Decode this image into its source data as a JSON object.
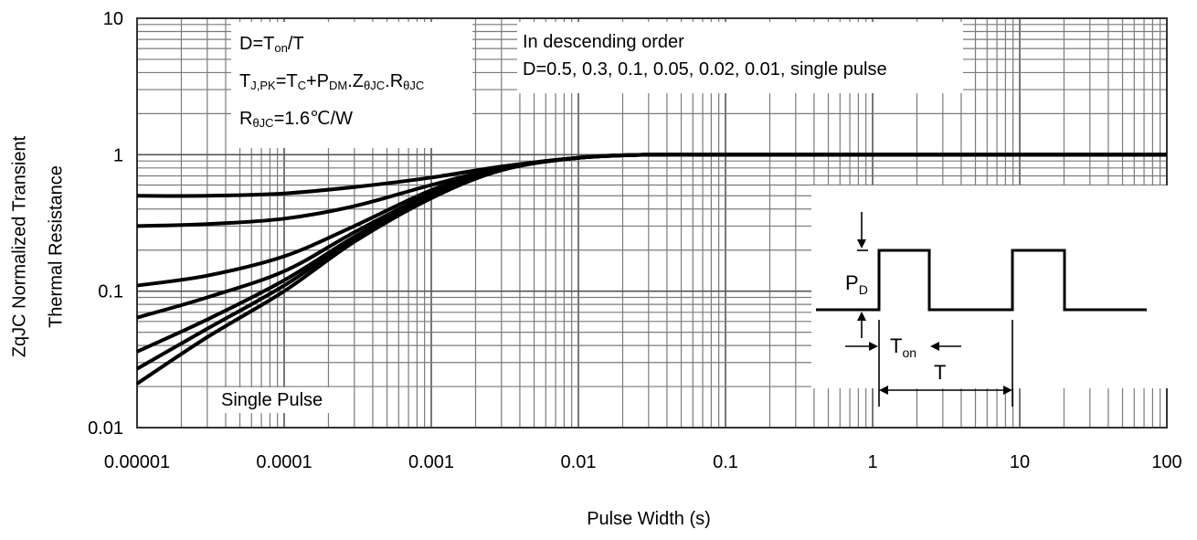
{
  "chart_data": {
    "type": "line",
    "x_scale": "log",
    "y_scale": "log",
    "xlim": [
      1e-05,
      100
    ],
    "ylim": [
      0.01,
      10
    ],
    "x_ticks": [
      "0.00001",
      "0.0001",
      "0.001",
      "0.01",
      "0.1",
      "1",
      "10",
      "100"
    ],
    "y_ticks": [
      "0.01",
      "0.1",
      "1",
      "10"
    ],
    "xlabel": "Pulse Width (s)",
    "ylabel_line1": "ZqJC Normalized Transient",
    "ylabel_line2": "Thermal Resistance",
    "grid": true,
    "series": [
      {
        "name": "D=0.5",
        "x": [
          1e-05,
          3e-05,
          0.0001,
          0.0003,
          0.001,
          0.003,
          0.01,
          0.03,
          0.1,
          1,
          10,
          100
        ],
        "y": [
          0.5,
          0.5,
          0.52,
          0.58,
          0.68,
          0.82,
          0.95,
          1.0,
          1.0,
          1.0,
          1.0,
          1.0
        ]
      },
      {
        "name": "D=0.3",
        "x": [
          1e-05,
          3e-05,
          0.0001,
          0.0003,
          0.001,
          0.003,
          0.01,
          0.03,
          0.1,
          1,
          10,
          100
        ],
        "y": [
          0.3,
          0.31,
          0.34,
          0.42,
          0.6,
          0.8,
          0.95,
          1.0,
          1.0,
          1.0,
          1.0,
          1.0
        ]
      },
      {
        "name": "D=0.1",
        "x": [
          1e-05,
          3e-05,
          0.0001,
          0.0003,
          0.001,
          0.003,
          0.01,
          0.03,
          0.1,
          1,
          10,
          100
        ],
        "y": [
          0.11,
          0.13,
          0.18,
          0.3,
          0.55,
          0.8,
          0.95,
          1.0,
          1.0,
          1.0,
          1.0,
          1.0
        ]
      },
      {
        "name": "D=0.05",
        "x": [
          1e-05,
          3e-05,
          0.0001,
          0.0003,
          0.001,
          0.003,
          0.01,
          0.03,
          0.1,
          1,
          10,
          100
        ],
        "y": [
          0.064,
          0.09,
          0.14,
          0.27,
          0.52,
          0.79,
          0.95,
          1.0,
          1.0,
          1.0,
          1.0,
          1.0
        ]
      },
      {
        "name": "D=0.02",
        "x": [
          1e-05,
          3e-05,
          0.0001,
          0.0003,
          0.001,
          0.003,
          0.01,
          0.03,
          0.1,
          1,
          10,
          100
        ],
        "y": [
          0.036,
          0.062,
          0.12,
          0.25,
          0.5,
          0.78,
          0.95,
          1.0,
          1.0,
          1.0,
          1.0,
          1.0
        ]
      },
      {
        "name": "D=0.01",
        "x": [
          1e-05,
          3e-05,
          0.0001,
          0.0003,
          0.001,
          0.003,
          0.01,
          0.03,
          0.1,
          1,
          10,
          100
        ],
        "y": [
          0.027,
          0.053,
          0.11,
          0.24,
          0.49,
          0.78,
          0.95,
          1.0,
          1.0,
          1.0,
          1.0,
          1.0
        ]
      },
      {
        "name": "single pulse",
        "x": [
          1e-05,
          3e-05,
          0.0001,
          0.0003,
          0.001,
          0.003,
          0.01,
          0.03,
          0.1,
          1,
          10,
          100
        ],
        "y": [
          0.021,
          0.046,
          0.1,
          0.23,
          0.48,
          0.77,
          0.95,
          1.0,
          1.0,
          1.0,
          1.0,
          1.0
        ]
      }
    ],
    "annotations": {
      "box1": {
        "line1": [
          "D=T",
          "on",
          "/T"
        ],
        "line2": [
          "T",
          "J,PK",
          "=T",
          "C",
          "+P",
          "DM",
          ".Z",
          "θJC",
          ".R",
          "θJC"
        ],
        "line3": [
          "R",
          "θJC",
          "=1.6℃/W"
        ]
      },
      "box2": {
        "line1": "In descending order",
        "line2": "D=0.5, 0.3, 0.1, 0.05, 0.02, 0.01, single pulse"
      },
      "single_pulse_label": "Single Pulse",
      "inset": {
        "pd_main": "P",
        "pd_sub": "D",
        "ton_main": "T",
        "ton_sub": "on",
        "period": "T"
      }
    }
  }
}
